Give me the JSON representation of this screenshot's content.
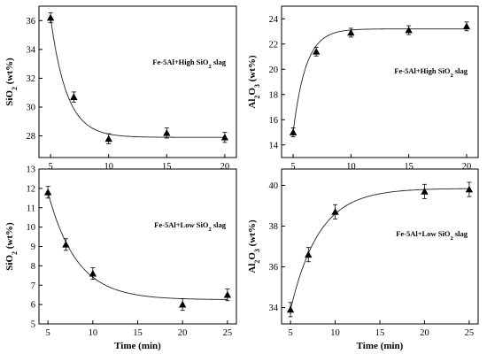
{
  "chart_data": [
    {
      "type": "scatter",
      "ylabel_main": "SiO",
      "ylabel_sub": "2",
      "ylabel_unit": " (wt%)",
      "xlabel": "",
      "annotation": {
        "prefix": "Fe-5Al+High SiO",
        "sub": "2",
        "suffix": " slag"
      },
      "xlim": [
        4,
        21
      ],
      "ylim": [
        26.5,
        37
      ],
      "xticks": [
        5,
        10,
        15,
        20
      ],
      "yticks": [
        28,
        30,
        32,
        34,
        36
      ],
      "x": [
        5,
        7,
        10,
        15,
        20
      ],
      "y": [
        36.2,
        30.7,
        27.8,
        28.2,
        27.9
      ],
      "err": [
        0.35,
        0.35,
        0.35,
        0.35,
        0.35
      ],
      "fit": {
        "form": "exp_decay",
        "y0": 27.9,
        "A": 8.3,
        "t0": 5,
        "tau": 1.4
      }
    },
    {
      "type": "scatter",
      "ylabel_main": "Al",
      "ylabel_sub": "2",
      "ylabel_mid": "O",
      "ylabel_sub2": "3",
      "ylabel_unit": " (wt%)",
      "xlabel": "",
      "annotation": {
        "prefix": "Fe-5Al+High SiO",
        "sub": "2",
        "suffix": " slag"
      },
      "xlim": [
        4,
        21
      ],
      "ylim": [
        13,
        25
      ],
      "xticks": [
        5,
        10,
        15,
        20
      ],
      "yticks": [
        14,
        16,
        18,
        20,
        22,
        24
      ],
      "x": [
        5,
        7,
        10,
        15,
        20
      ],
      "y": [
        15.0,
        21.4,
        22.9,
        23.1,
        23.4
      ],
      "err": [
        0.35,
        0.35,
        0.35,
        0.35,
        0.35
      ],
      "fit": {
        "form": "exp_rise",
        "y0": 23.2,
        "A": 8.2,
        "t0": 5,
        "tau": 1.1
      }
    },
    {
      "type": "scatter",
      "ylabel_main": "SiO",
      "ylabel_sub": "2",
      "ylabel_unit": " (wt%)",
      "xlabel": "Time (min)",
      "annotation": {
        "prefix": "Fe-5Al+Low SiO",
        "sub": "2",
        "suffix": " slag"
      },
      "xlim": [
        4,
        26
      ],
      "ylim": [
        5,
        13
      ],
      "xticks": [
        5,
        10,
        15,
        20,
        25
      ],
      "yticks": [
        5,
        6,
        7,
        8,
        9,
        10,
        11,
        12,
        13
      ],
      "x": [
        5,
        7,
        10,
        20,
        25
      ],
      "y": [
        11.8,
        9.1,
        7.6,
        6.0,
        6.5
      ],
      "err": [
        0.3,
        0.3,
        0.3,
        0.3,
        0.3
      ],
      "fit": {
        "form": "exp_decay",
        "y0": 6.25,
        "A": 5.55,
        "t0": 5,
        "tau": 3.2
      }
    },
    {
      "type": "scatter",
      "ylabel_main": "Al",
      "ylabel_sub": "2",
      "ylabel_mid": "O",
      "ylabel_sub2": "3",
      "ylabel_unit": " (wt%)",
      "xlabel": "Time (min)",
      "annotation": {
        "prefix": "Fe-5Al+Low SiO",
        "sub": "2",
        "suffix": " slag"
      },
      "xlim": [
        4,
        26
      ],
      "ylim": [
        33.2,
        40.8
      ],
      "xticks": [
        5,
        10,
        15,
        20,
        25
      ],
      "yticks": [
        34,
        36,
        38,
        40
      ],
      "x": [
        5,
        7,
        10,
        20,
        25
      ],
      "y": [
        33.9,
        36.6,
        38.7,
        39.7,
        39.8
      ],
      "err": [
        0.35,
        0.35,
        0.35,
        0.35,
        0.35
      ],
      "fit": {
        "form": "exp_rise",
        "y0": 39.85,
        "A": 5.95,
        "t0": 5,
        "tau": 3.2
      }
    }
  ]
}
